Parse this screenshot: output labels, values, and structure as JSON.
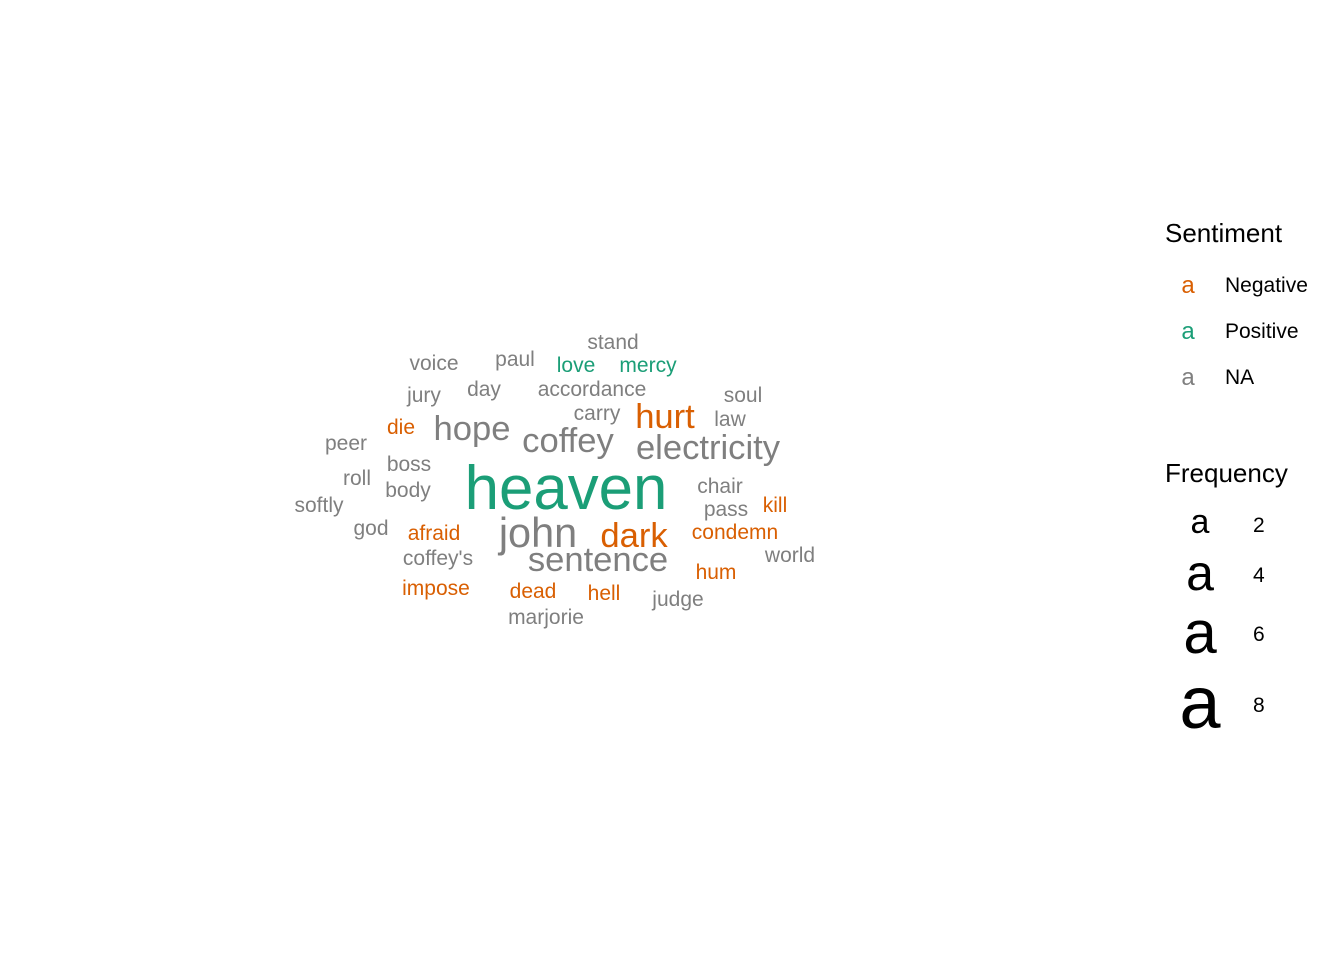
{
  "chart_data": {
    "type": "wordcloud",
    "colors": {
      "Negative": "#d95f02",
      "Positive": "#1b9e77",
      "NA": "#7f7f7f"
    },
    "words": [
      {
        "word": "heaven",
        "freq": 8,
        "sentiment": "Positive"
      },
      {
        "word": "john",
        "freq": 5,
        "sentiment": "NA"
      },
      {
        "word": "dark",
        "freq": 4,
        "sentiment": "Negative"
      },
      {
        "word": "sentence",
        "freq": 4,
        "sentiment": "NA"
      },
      {
        "word": "hope",
        "freq": 4,
        "sentiment": "NA"
      },
      {
        "word": "coffey",
        "freq": 4,
        "sentiment": "NA"
      },
      {
        "word": "electricity",
        "freq": 4,
        "sentiment": "NA"
      },
      {
        "word": "hurt",
        "freq": 4,
        "sentiment": "Negative"
      },
      {
        "word": "stand",
        "freq": 2,
        "sentiment": "NA"
      },
      {
        "word": "voice",
        "freq": 2,
        "sentiment": "NA"
      },
      {
        "word": "paul",
        "freq": 2,
        "sentiment": "NA"
      },
      {
        "word": "love",
        "freq": 2,
        "sentiment": "Positive"
      },
      {
        "word": "mercy",
        "freq": 2,
        "sentiment": "Positive"
      },
      {
        "word": "jury",
        "freq": 2,
        "sentiment": "NA"
      },
      {
        "word": "day",
        "freq": 2,
        "sentiment": "NA"
      },
      {
        "word": "accordance",
        "freq": 2,
        "sentiment": "NA"
      },
      {
        "word": "soul",
        "freq": 2,
        "sentiment": "NA"
      },
      {
        "word": "carry",
        "freq": 2,
        "sentiment": "NA"
      },
      {
        "word": "law",
        "freq": 2,
        "sentiment": "NA"
      },
      {
        "word": "die",
        "freq": 2,
        "sentiment": "Negative"
      },
      {
        "word": "peer",
        "freq": 2,
        "sentiment": "NA"
      },
      {
        "word": "boss",
        "freq": 2,
        "sentiment": "NA"
      },
      {
        "word": "roll",
        "freq": 2,
        "sentiment": "NA"
      },
      {
        "word": "body",
        "freq": 2,
        "sentiment": "NA"
      },
      {
        "word": "chair",
        "freq": 2,
        "sentiment": "NA"
      },
      {
        "word": "softly",
        "freq": 2,
        "sentiment": "NA"
      },
      {
        "word": "pass",
        "freq": 2,
        "sentiment": "NA"
      },
      {
        "word": "kill",
        "freq": 2,
        "sentiment": "Negative"
      },
      {
        "word": "god",
        "freq": 2,
        "sentiment": "NA"
      },
      {
        "word": "afraid",
        "freq": 2,
        "sentiment": "Negative"
      },
      {
        "word": "condemn",
        "freq": 2,
        "sentiment": "Negative"
      },
      {
        "word": "coffey's",
        "freq": 2,
        "sentiment": "NA"
      },
      {
        "word": "world",
        "freq": 2,
        "sentiment": "NA"
      },
      {
        "word": "hum",
        "freq": 2,
        "sentiment": "Negative"
      },
      {
        "word": "impose",
        "freq": 2,
        "sentiment": "Negative"
      },
      {
        "word": "dead",
        "freq": 2,
        "sentiment": "Negative"
      },
      {
        "word": "hell",
        "freq": 2,
        "sentiment": "Negative"
      },
      {
        "word": "judge",
        "freq": 2,
        "sentiment": "NA"
      },
      {
        "word": "marjorie",
        "freq": 2,
        "sentiment": "NA"
      }
    ]
  },
  "legend": {
    "sentiment": {
      "title": "Sentiment",
      "key_glyph": "a",
      "items": [
        {
          "label": "Negative",
          "category": "Negative"
        },
        {
          "label": "Positive",
          "category": "Positive"
        },
        {
          "label": "NA",
          "category": "NA"
        }
      ]
    },
    "frequency": {
      "title": "Frequency",
      "key_glyph": "a",
      "items": [
        {
          "label": "2",
          "value": 2
        },
        {
          "label": "4",
          "value": 4
        },
        {
          "label": "6",
          "value": 6
        },
        {
          "label": "8",
          "value": 8
        }
      ]
    }
  }
}
